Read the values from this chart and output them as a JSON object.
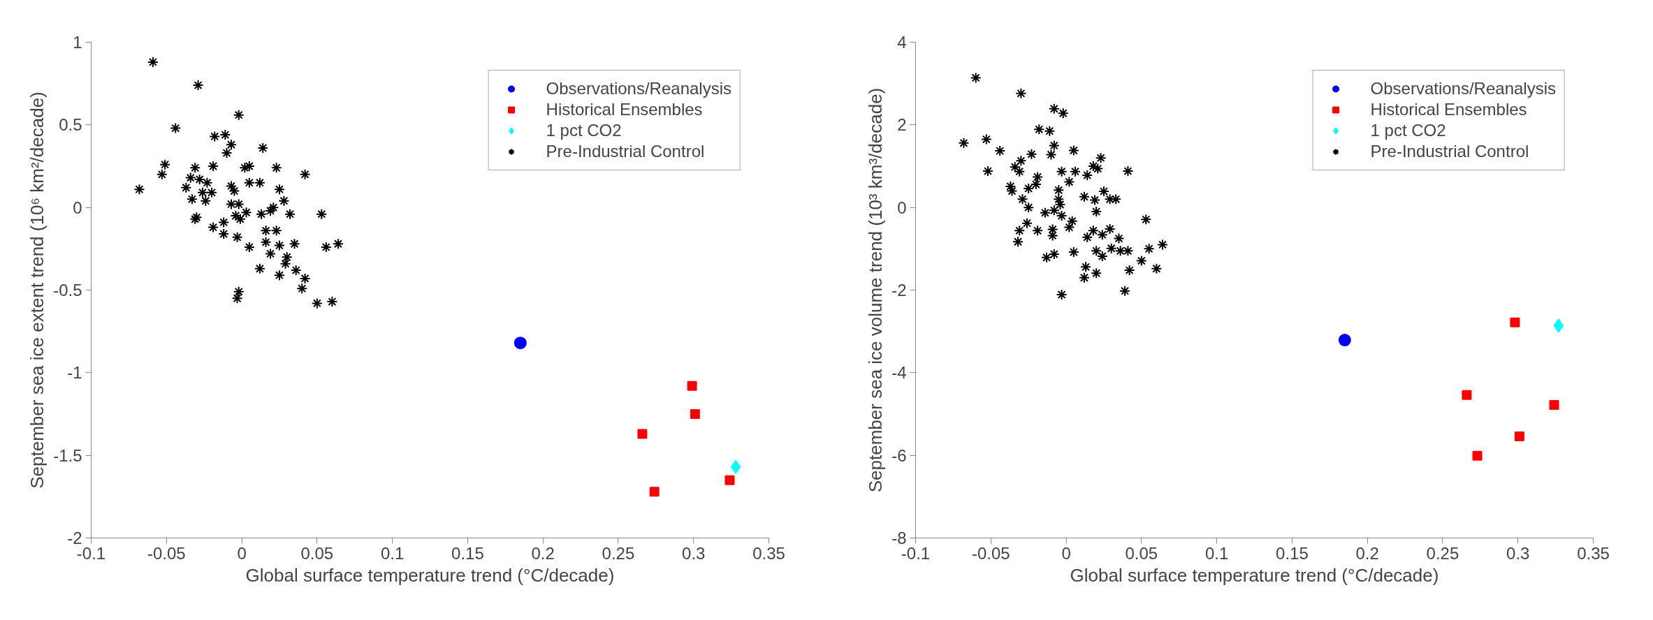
{
  "chart_data": [
    {
      "type": "scatter",
      "xlabel": "Global surface temperature trend (°C/decade)",
      "ylabel": "September sea ice extent trend (10⁶ km²/decade)",
      "xlim": [
        -0.1,
        0.35
      ],
      "ylim": [
        -2,
        1
      ],
      "xticks": [
        -0.1,
        -0.05,
        0,
        0.05,
        0.1,
        0.15,
        0.2,
        0.25,
        0.3,
        0.35
      ],
      "yticks": [
        -2,
        -1.5,
        -1,
        -0.5,
        0,
        0.5,
        1
      ],
      "grid": false,
      "legend": "top right",
      "series": [
        {
          "name": "Observations/Reanalysis",
          "color": "#0000ff",
          "marker": "circle",
          "x": [
            0.185
          ],
          "values": [
            -0.82
          ]
        },
        {
          "name": "Historical Ensembles",
          "color": "#ff0000",
          "marker": "square",
          "x": [
            0.299,
            0.301,
            0.266,
            0.274,
            0.324
          ],
          "values": [
            -1.08,
            -1.25,
            -1.37,
            -1.72,
            -1.65
          ]
        },
        {
          "name": "1 pct CO2",
          "color": "#00ffff",
          "marker": "diamond",
          "x": [
            0.328
          ],
          "values": [
            -1.57
          ]
        },
        {
          "name": "Pre-Industrial Control",
          "color": "#000000",
          "marker": "cross",
          "x": [
            -0.059,
            -0.029,
            -0.002,
            -0.044,
            -0.018,
            -0.011,
            -0.007,
            -0.01,
            0.014,
            -0.051,
            -0.053,
            -0.031,
            -0.019,
            0.002,
            0.005,
            0.023,
            0.042,
            -0.068,
            -0.037,
            -0.034,
            -0.028,
            -0.023,
            -0.026,
            -0.02,
            -0.033,
            -0.024,
            -0.007,
            -0.005,
            0.005,
            0.012,
            0.025,
            -0.007,
            -0.002,
            0.028,
            0.021,
            0.019,
            -0.031,
            -0.03,
            -0.012,
            -0.004,
            -0.001,
            0.003,
            0.013,
            0.032,
            0.053,
            -0.019,
            -0.012,
            -0.003,
            0.016,
            0.023,
            0.005,
            0.016,
            0.025,
            0.035,
            0.019,
            0.03,
            0.029,
            0.056,
            0.064,
            0.012,
            0.025,
            0.036,
            0.042,
            0.04,
            -0.002,
            -0.003,
            0.05,
            0.06
          ],
          "values": [
            0.88,
            0.74,
            0.56,
            0.48,
            0.43,
            0.44,
            0.38,
            0.33,
            0.36,
            0.26,
            0.2,
            0.24,
            0.25,
            0.24,
            0.25,
            0.24,
            0.2,
            0.11,
            0.12,
            0.18,
            0.17,
            0.15,
            0.09,
            0.09,
            0.05,
            0.04,
            0.13,
            0.1,
            0.15,
            0.15,
            0.11,
            0.02,
            0.02,
            0.04,
            0.0,
            -0.02,
            -0.07,
            -0.06,
            -0.09,
            -0.05,
            -0.07,
            -0.03,
            -0.04,
            -0.04,
            -0.04,
            -0.12,
            -0.16,
            -0.18,
            -0.14,
            -0.14,
            -0.24,
            -0.21,
            -0.23,
            -0.22,
            -0.28,
            -0.3,
            -0.34,
            -0.24,
            -0.22,
            -0.37,
            -0.41,
            -0.38,
            -0.43,
            -0.49,
            -0.51,
            -0.55,
            -0.58,
            -0.57
          ]
        }
      ]
    },
    {
      "type": "scatter",
      "xlabel": "Global surface temperature trend (°C/decade)",
      "ylabel": "September sea ice volume trend (10³ km³/decade)",
      "xlim": [
        -0.1,
        0.35
      ],
      "ylim": [
        -8,
        4
      ],
      "xticks": [
        -0.1,
        -0.05,
        0,
        0.05,
        0.1,
        0.15,
        0.2,
        0.25,
        0.3,
        0.35
      ],
      "yticks": [
        -8,
        -6,
        -4,
        -2,
        0,
        2,
        4
      ],
      "grid": false,
      "legend": "top right",
      "series": [
        {
          "name": "Observations/Reanalysis",
          "color": "#0000ff",
          "marker": "circle",
          "x": [
            0.185
          ],
          "values": [
            -3.21
          ]
        },
        {
          "name": "Historical Ensembles",
          "color": "#ff0000",
          "marker": "square",
          "x": [
            0.298,
            0.266,
            0.324,
            0.301,
            0.273
          ],
          "values": [
            -2.78,
            -4.54,
            -4.78,
            -5.54,
            -6.01
          ]
        },
        {
          "name": "1 pct CO2",
          "color": "#00ffff",
          "marker": "diamond",
          "x": [
            0.327
          ],
          "values": [
            -2.86
          ]
        },
        {
          "name": "Pre-Industrial Control",
          "color": "#000000",
          "marker": "cross",
          "x": [
            -0.06,
            -0.03,
            -0.008,
            -0.002,
            -0.018,
            -0.011,
            -0.068,
            -0.053,
            -0.044,
            -0.03,
            -0.023,
            -0.01,
            -0.008,
            0.005,
            0.023,
            -0.052,
            -0.034,
            -0.031,
            -0.019,
            -0.003,
            0.006,
            0.014,
            0.018,
            0.021,
            0.041,
            -0.037,
            -0.036,
            -0.025,
            -0.02,
            -0.005,
            0.002,
            0.025,
            0.012,
            0.019,
            0.029,
            0.033,
            -0.029,
            -0.025,
            -0.005,
            -0.004,
            -0.014,
            -0.008,
            -0.003,
            0.004,
            0.002,
            0.02,
            0.053,
            -0.026,
            -0.031,
            -0.019,
            -0.009,
            -0.009,
            0.018,
            0.024,
            0.029,
            0.014,
            0.035,
            -0.032,
            -0.013,
            -0.008,
            0.005,
            0.02,
            0.024,
            0.03,
            0.036,
            0.041,
            0.055,
            0.064,
            0.05,
            0.06,
            0.042,
            0.013,
            0.012,
            0.02,
            0.039,
            -0.003
          ],
          "values": [
            3.14,
            2.76,
            2.39,
            2.28,
            1.89,
            1.85,
            1.56,
            1.65,
            1.37,
            1.13,
            1.29,
            1.28,
            1.5,
            1.38,
            1.2,
            0.88,
            0.98,
            0.87,
            0.74,
            0.87,
            0.87,
            0.78,
            1.0,
            0.94,
            0.88,
            0.51,
            0.4,
            0.46,
            0.56,
            0.42,
            0.62,
            0.39,
            0.26,
            0.18,
            0.2,
            0.2,
            0.2,
            0.0,
            0.2,
            0.07,
            -0.13,
            -0.07,
            -0.2,
            -0.33,
            -0.48,
            -0.1,
            -0.29,
            -0.38,
            -0.56,
            -0.56,
            -0.68,
            -0.53,
            -0.56,
            -0.66,
            -0.52,
            -0.72,
            -0.75,
            -0.83,
            -1.21,
            -1.13,
            -1.08,
            -1.05,
            -1.18,
            -0.99,
            -1.05,
            -1.05,
            -1.0,
            -0.9,
            -1.29,
            -1.48,
            -1.52,
            -1.44,
            -1.7,
            -1.59,
            -2.02,
            -2.11
          ]
        }
      ]
    }
  ]
}
